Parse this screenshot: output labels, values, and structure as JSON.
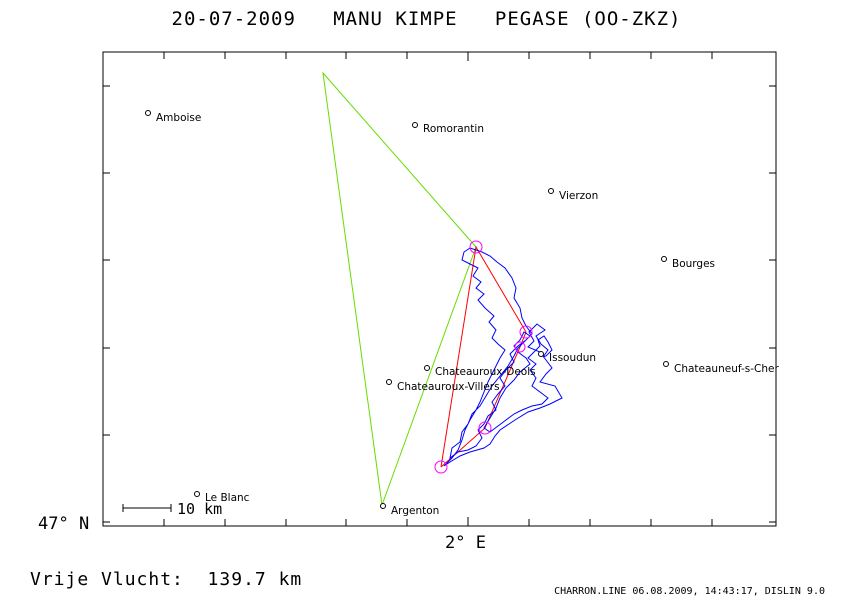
{
  "header": {
    "title": "20-07-2009   MANU KIMPE   PEGASE (OO-ZKZ)"
  },
  "axes": {
    "lat_label": "47° N",
    "lon_label": "2° E"
  },
  "scale_bar": {
    "label": "10 km"
  },
  "footer": {
    "flight": "Vrije Vlucht:  139.7 km",
    "credit": "CHARRON.LINE 06.08.2009, 14:43:17, DISLIN 9.0"
  },
  "places": [
    {
      "id": "amboise",
      "name": "Amboise"
    },
    {
      "id": "romorantin",
      "name": "Romorantin"
    },
    {
      "id": "vierzon",
      "name": "Vierzon"
    },
    {
      "id": "bourges",
      "name": "Bourges"
    },
    {
      "id": "issoudun",
      "name": "Issoudun"
    },
    {
      "id": "chateauroux-deols",
      "name": "Chateauroux-Deols"
    },
    {
      "id": "chateauroux-villers",
      "name": "Chateauroux-Villers"
    },
    {
      "id": "chateauneuf",
      "name": "Chateauneuf-s-Cher"
    },
    {
      "id": "le-blanc",
      "name": "Le Blanc"
    },
    {
      "id": "argenton",
      "name": "Argenton"
    }
  ],
  "colors": {
    "track": "#0000ff",
    "task": "#ff0000",
    "turnpoint": "#ff00ff",
    "triangle": "#66dd00",
    "frame": "#000000"
  }
}
